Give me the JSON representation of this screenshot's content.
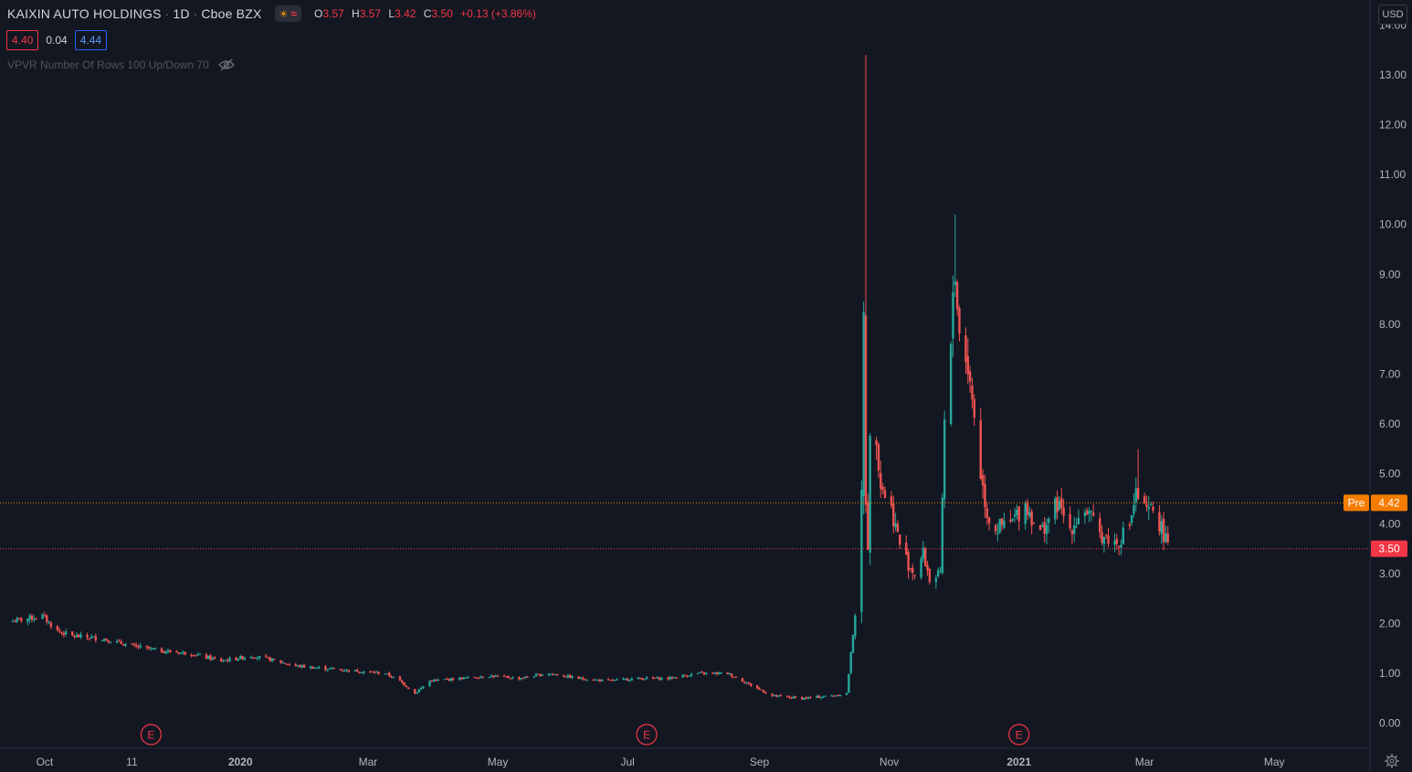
{
  "header": {
    "symbol": "KAIXIN AUTO HOLDINGS",
    "interval": "1D",
    "exchange": "Cboe BZX",
    "separator": "·",
    "ohlc": {
      "o_label": "O",
      "o": "3.57",
      "h_label": "H",
      "h": "3.57",
      "l_label": "L",
      "l": "3.42",
      "c_label": "C",
      "c": "3.50",
      "change": "+0.13 (+3.86%)"
    }
  },
  "quote": {
    "bid": "4.40",
    "spread": "0.04",
    "ask": "4.44"
  },
  "indicator": {
    "label": "VPVR Number Of Rows 100 Up/Down 70"
  },
  "currency": "USD",
  "icons": {
    "session": "sun-icon",
    "market_status": "waves-icon",
    "visibility": "eye-hidden-icon",
    "settings": "gear-icon"
  },
  "colors": {
    "background": "#131722",
    "up": "#26a69a",
    "down": "#ef5350",
    "premarket": "#f57c00",
    "last": "#f23645"
  },
  "chart_data": {
    "type": "candlestick",
    "title": "KAIXIN AUTO HOLDINGS · 1D · Cboe BZX",
    "ylim": [
      -0.5,
      14.5
    ],
    "yticks": [
      "0.00",
      "1.00",
      "2.00",
      "3.00",
      "4.00",
      "5.00",
      "6.00",
      "7.00",
      "8.00",
      "9.00",
      "10.00",
      "11.00",
      "12.00",
      "13.00",
      "14.00"
    ],
    "xticks": [
      {
        "label": "Oct",
        "date": "2019-10-01",
        "bold": false
      },
      {
        "label": "11",
        "date": "2019-11-11",
        "bold": false
      },
      {
        "label": "2020",
        "date": "2020-01-01",
        "bold": true
      },
      {
        "label": "Mar",
        "date": "2020-03-01",
        "bold": false
      },
      {
        "label": "May",
        "date": "2020-05-01",
        "bold": false
      },
      {
        "label": "Jul",
        "date": "2020-07-01",
        "bold": false
      },
      {
        "label": "Sep",
        "date": "2020-09-01",
        "bold": false
      },
      {
        "label": "Nov",
        "date": "2020-11-01",
        "bold": false
      },
      {
        "label": "2021",
        "date": "2021-01-01",
        "bold": true
      },
      {
        "label": "Mar",
        "date": "2021-03-01",
        "bold": false
      },
      {
        "label": "May",
        "date": "2021-05-01",
        "bold": false
      }
    ],
    "x_range": [
      "2019-09-10",
      "2021-06-15"
    ],
    "price_lines": [
      {
        "name": "Pre",
        "value": 4.42,
        "label": "4.42",
        "color": "#f57c00"
      },
      {
        "name": "last",
        "value": 3.5,
        "label": "3.50",
        "color": "#f23645"
      }
    ],
    "earnings_markers": [
      {
        "label": "E",
        "date": "2019-11-20"
      },
      {
        "label": "E",
        "date": "2020-07-10"
      },
      {
        "label": "E",
        "date": "2021-01-01"
      }
    ],
    "anchors": [
      [
        "2019-09-16",
        2.05
      ],
      [
        "2019-09-30",
        2.15
      ],
      [
        "2019-10-07",
        1.85
      ],
      [
        "2019-10-14",
        1.75
      ],
      [
        "2019-10-28",
        1.7
      ],
      [
        "2019-11-11",
        1.55
      ],
      [
        "2019-11-25",
        1.45
      ],
      [
        "2019-12-09",
        1.4
      ],
      [
        "2019-12-23",
        1.25
      ],
      [
        "2019-12-30",
        1.3
      ],
      [
        "2020-01-06",
        1.35
      ],
      [
        "2020-01-13",
        1.3
      ],
      [
        "2020-01-27",
        1.15
      ],
      [
        "2020-02-10",
        1.1
      ],
      [
        "2020-02-24",
        1.05
      ],
      [
        "2020-03-09",
        1.0
      ],
      [
        "2020-03-16",
        0.85
      ],
      [
        "2020-03-23",
        0.6
      ],
      [
        "2020-03-30",
        0.85
      ],
      [
        "2020-04-13",
        0.9
      ],
      [
        "2020-04-27",
        0.95
      ],
      [
        "2020-05-11",
        0.9
      ],
      [
        "2020-05-25",
        1.0
      ],
      [
        "2020-06-08",
        0.9
      ],
      [
        "2020-06-22",
        0.85
      ],
      [
        "2020-07-06",
        0.9
      ],
      [
        "2020-07-20",
        0.9
      ],
      [
        "2020-08-03",
        1.0
      ],
      [
        "2020-08-17",
        1.0
      ],
      [
        "2020-08-31",
        0.7
      ],
      [
        "2020-09-07",
        0.55
      ],
      [
        "2020-09-21",
        0.5
      ],
      [
        "2020-10-05",
        0.55
      ],
      [
        "2020-10-12",
        0.6
      ],
      [
        "2020-10-15",
        1.8
      ],
      [
        "2020-10-16",
        2.2
      ],
      [
        "2020-10-19",
        4.5
      ],
      [
        "2020-10-20",
        8.1
      ],
      [
        "2020-10-21",
        4.5
      ],
      [
        "2020-10-22",
        3.6
      ],
      [
        "2020-10-23",
        5.6
      ],
      [
        "2020-10-26",
        5.8
      ],
      [
        "2020-10-28",
        4.8
      ],
      [
        "2020-11-02",
        4.3
      ],
      [
        "2020-11-06",
        3.6
      ],
      [
        "2020-11-10",
        3.2
      ],
      [
        "2020-11-13",
        3.0
      ],
      [
        "2020-11-17",
        3.4
      ],
      [
        "2020-11-20",
        2.9
      ],
      [
        "2020-11-25",
        2.95
      ],
      [
        "2020-11-27",
        6.0
      ],
      [
        "2020-11-30",
        7.4
      ],
      [
        "2020-12-01",
        8.7
      ],
      [
        "2020-12-02",
        9.1
      ],
      [
        "2020-12-03",
        8.4
      ],
      [
        "2020-12-04",
        7.8
      ],
      [
        "2020-12-07",
        7.4
      ],
      [
        "2020-12-09",
        6.8
      ],
      [
        "2020-12-11",
        6.2
      ],
      [
        "2020-12-14",
        5.0
      ],
      [
        "2020-12-17",
        4.2
      ],
      [
        "2020-12-21",
        3.9
      ],
      [
        "2020-12-28",
        4.0
      ],
      [
        "2021-01-04",
        4.4
      ],
      [
        "2021-01-11",
        3.8
      ],
      [
        "2021-01-19",
        4.4
      ],
      [
        "2021-01-25",
        3.9
      ],
      [
        "2021-02-01",
        4.3
      ],
      [
        "2021-02-08",
        3.8
      ],
      [
        "2021-02-16",
        3.6
      ],
      [
        "2021-02-22",
        4.0
      ],
      [
        "2021-02-25",
        4.6
      ],
      [
        "2021-03-02",
        4.2
      ],
      [
        "2021-03-05",
        4.3
      ],
      [
        "2021-03-10",
        3.8
      ],
      [
        "2021-03-12",
        3.5
      ]
    ],
    "notable_highs": [
      {
        "date": "2020-10-21",
        "high": 13.4
      },
      {
        "date": "2020-12-02",
        "high": 10.2
      },
      {
        "date": "2020-10-16",
        "high": 2.2
      },
      {
        "date": "2021-02-26",
        "high": 5.5
      }
    ]
  }
}
